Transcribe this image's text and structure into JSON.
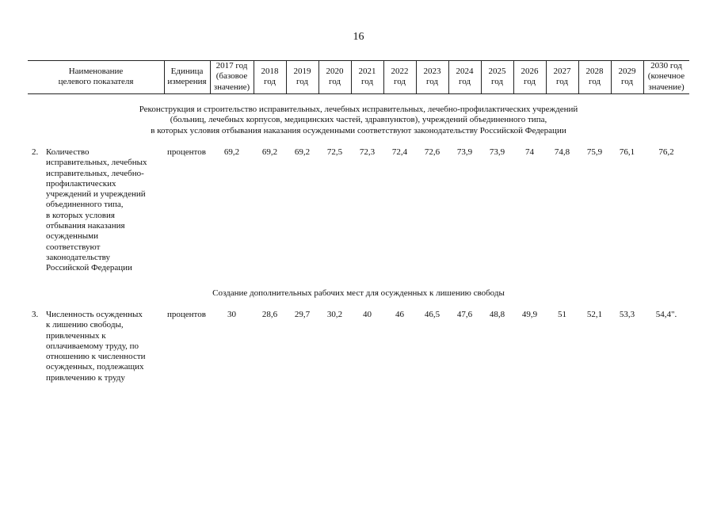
{
  "page_number": "16",
  "table": {
    "header": [
      "Наименование\nцелевого показателя",
      "Единица\nизмерения",
      "2017 год\n(базовое\nзначение)",
      "2018\nгод",
      "2019\nгод",
      "2020\nгод",
      "2021\nгод",
      "2022\nгод",
      "2023\nгод",
      "2024\nгод",
      "2025\nгод",
      "2026\nгод",
      "2027\nгод",
      "2028\nгод",
      "2029\nгод",
      "2030 год\n(конечное\nзначение)"
    ],
    "sections": [
      {
        "title": "Реконструкция и строительство исправительных, лечебных исправительных, лечебно-профилактических учреждений\n(больниц, лечебных корпусов, медицинских частей, здравпунктов), учреждений объединенного типа,\nв которых условия отбывания наказания осужденными соответствуют законодательству Российской Федерации",
        "rows": [
          {
            "number": "2.",
            "name": "Количество\nисправительных, лечебных\nисправительных, лечебно-\nпрофилактических\nучреждений и учреждений\nобъединенного типа,\nв которых условия\nотбывания наказания\nосужденными\nсоответствуют\nзаконодательству\nРоссийской Федерации",
            "unit": "процентов",
            "values": [
              "69,2",
              "69,2",
              "69,2",
              "72,5",
              "72,3",
              "72,4",
              "72,6",
              "73,9",
              "73,9",
              "74",
              "74,8",
              "75,9",
              "76,1",
              "76,2"
            ]
          }
        ]
      },
      {
        "title": "Создание дополнительных рабочих мест для осужденных к лишению свободы",
        "rows": [
          {
            "number": "3.",
            "name": "Численность осужденных\nк лишению свободы,\nпривлеченных к\nоплачиваемому труду, по\nотношению к численности\nосужденных, подлежащих\nпривлечению к труду",
            "unit": "процентов",
            "values": [
              "30",
              "28,6",
              "29,7",
              "30,2",
              "40",
              "46",
              "46,5",
              "47,6",
              "48,8",
              "49,9",
              "51",
              "52,1",
              "53,3",
              "54,4\"."
            ]
          }
        ]
      }
    ]
  }
}
